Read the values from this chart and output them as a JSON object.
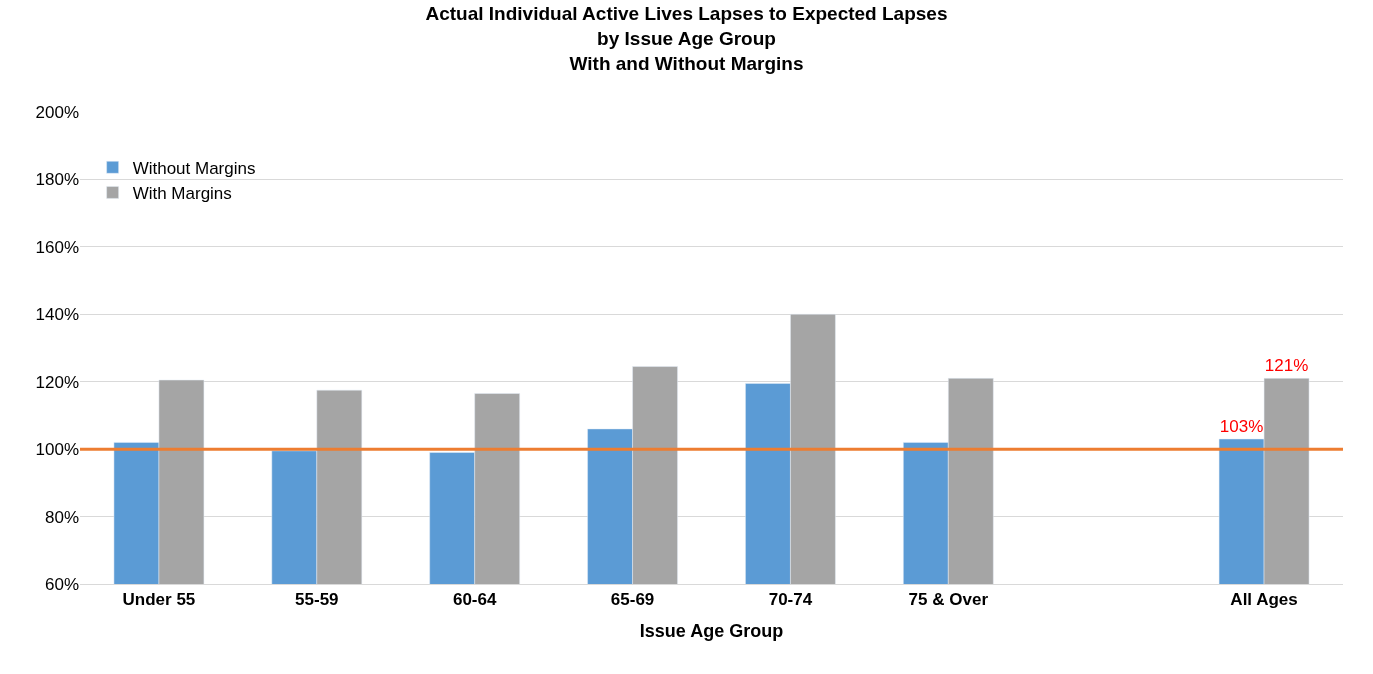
{
  "chart_data": {
    "type": "bar",
    "title": "Actual Individual Active Lives Lapses to Expected Lapses\nby Issue Age Group\nWith and Without Margins",
    "xlabel": "Issue Age Group",
    "categories": [
      "Under 55",
      "55-59",
      "60-64",
      "65-69",
      "70-74",
      "75 & Over",
      null,
      "All Ages"
    ],
    "series": [
      {
        "name": "Without Margins",
        "color": "#5b9bd5",
        "values": [
          102,
          99.5,
          99,
          106,
          119.5,
          102,
          null,
          103
        ],
        "value_labels": [
          null,
          null,
          null,
          null,
          null,
          null,
          null,
          "103%"
        ]
      },
      {
        "name": "With Margins",
        "color": "#a5a5a5",
        "values": [
          120.5,
          117.5,
          116.5,
          124.5,
          140,
          121,
          null,
          121
        ],
        "value_labels": [
          null,
          null,
          null,
          null,
          null,
          null,
          null,
          "121%"
        ]
      }
    ],
    "ylim": [
      60,
      200
    ],
    "yticks": [
      {
        "value": 60,
        "label": "60%"
      },
      {
        "value": 80,
        "label": "80%"
      },
      {
        "value": 100,
        "label": "100%"
      },
      {
        "value": 120,
        "label": "120%"
      },
      {
        "value": 140,
        "label": "140%"
      },
      {
        "value": 160,
        "label": "160%"
      },
      {
        "value": 180,
        "label": "180%"
      },
      {
        "value": 200,
        "label": "200%"
      }
    ],
    "ref_lines": [
      {
        "axis": "y",
        "value": 100,
        "color": "#ed7d31"
      }
    ],
    "grid": "y",
    "legend": "top left"
  }
}
